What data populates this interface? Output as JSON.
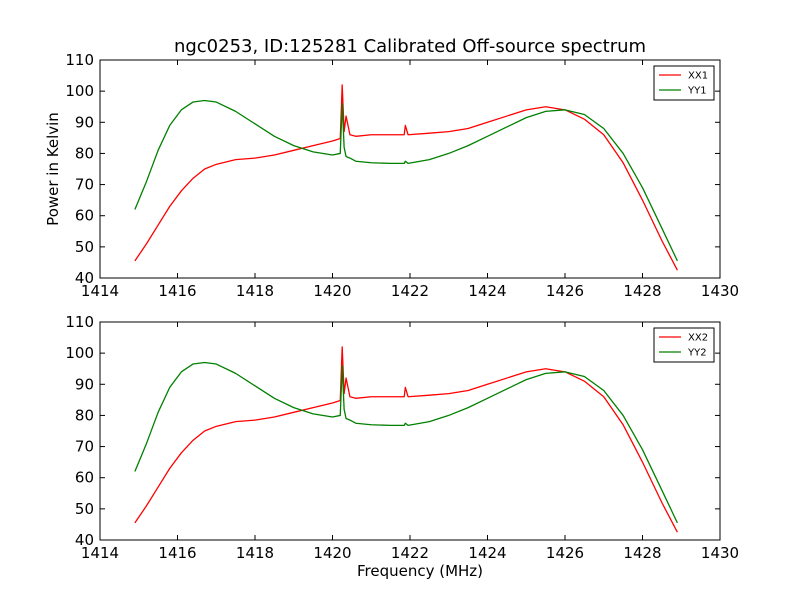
{
  "chart_title": "ngc0253, ID:125281 Calibrated Off-source spectrum",
  "colors": {
    "xx": "#ff0000",
    "yy": "#008000"
  },
  "chart_data": [
    {
      "type": "line",
      "ylabel": "Power in Kelvin",
      "xlabel": "",
      "xlim": [
        1414,
        1430
      ],
      "ylim": [
        40,
        110
      ],
      "xticks": [
        "1414",
        "1416",
        "1418",
        "1420",
        "1422",
        "1424",
        "1426",
        "1428",
        "1430"
      ],
      "yticks": [
        "40",
        "50",
        "60",
        "70",
        "80",
        "90",
        "100",
        "110"
      ],
      "legend_position": "top-right",
      "series": [
        {
          "name": "XX1",
          "color": "#ff0000",
          "x": [
            1414.9,
            1415.2,
            1415.5,
            1415.8,
            1416.1,
            1416.4,
            1416.7,
            1417.0,
            1417.5,
            1418.0,
            1418.5,
            1419.0,
            1419.5,
            1420.0,
            1420.2,
            1420.25,
            1420.3,
            1420.35,
            1420.45,
            1420.6,
            1421.0,
            1421.5,
            1421.85,
            1421.88,
            1421.95,
            1422.5,
            1423.0,
            1423.5,
            1424.0,
            1424.5,
            1425.0,
            1425.5,
            1426.0,
            1426.5,
            1427.0,
            1427.5,
            1428.0,
            1428.5,
            1428.9
          ],
          "y": [
            45.5,
            51,
            57,
            63,
            68,
            72,
            75,
            76.5,
            78,
            78.5,
            79.5,
            81,
            82.5,
            84,
            84.8,
            102,
            87,
            92,
            86,
            85.5,
            86,
            86,
            86,
            89,
            86,
            86.5,
            87,
            88,
            90,
            92,
            94,
            95,
            94,
            91,
            86,
            77,
            65,
            52,
            42.5
          ]
        },
        {
          "name": "YY1",
          "color": "#008000",
          "x": [
            1414.9,
            1415.2,
            1415.5,
            1415.8,
            1416.1,
            1416.4,
            1416.7,
            1417.0,
            1417.5,
            1418.0,
            1418.5,
            1419.0,
            1419.5,
            1420.0,
            1420.2,
            1420.25,
            1420.3,
            1420.35,
            1420.45,
            1420.6,
            1421.0,
            1421.5,
            1421.85,
            1421.88,
            1421.95,
            1422.5,
            1423.0,
            1423.5,
            1424.0,
            1424.5,
            1425.0,
            1425.5,
            1426.0,
            1426.5,
            1427.0,
            1427.5,
            1428.0,
            1428.5,
            1428.9
          ],
          "y": [
            62,
            71,
            81,
            89,
            94,
            96.5,
            97,
            96.5,
            93.5,
            89.5,
            85.5,
            82.5,
            80.5,
            79.5,
            80,
            96,
            82,
            79,
            78.5,
            77.5,
            77,
            76.8,
            76.8,
            77.5,
            76.8,
            78,
            80,
            82.5,
            85.5,
            88.5,
            91.5,
            93.5,
            94,
            92.5,
            88,
            80,
            69,
            56,
            45.5
          ]
        }
      ]
    },
    {
      "type": "line",
      "ylabel": "",
      "xlabel": "Frequency (MHz)",
      "xlim": [
        1414,
        1430
      ],
      "ylim": [
        40,
        110
      ],
      "xticks": [
        "1414",
        "1416",
        "1418",
        "1420",
        "1422",
        "1424",
        "1426",
        "1428",
        "1430"
      ],
      "yticks": [
        "40",
        "50",
        "60",
        "70",
        "80",
        "90",
        "100",
        "110"
      ],
      "legend_position": "top-right",
      "series": [
        {
          "name": "XX2",
          "color": "#ff0000",
          "x": [
            1414.9,
            1415.2,
            1415.5,
            1415.8,
            1416.1,
            1416.4,
            1416.7,
            1417.0,
            1417.5,
            1418.0,
            1418.5,
            1419.0,
            1419.5,
            1420.0,
            1420.2,
            1420.25,
            1420.3,
            1420.35,
            1420.45,
            1420.6,
            1421.0,
            1421.5,
            1421.85,
            1421.88,
            1421.95,
            1422.5,
            1423.0,
            1423.5,
            1424.0,
            1424.5,
            1425.0,
            1425.5,
            1426.0,
            1426.5,
            1427.0,
            1427.5,
            1428.0,
            1428.5,
            1428.9
          ],
          "y": [
            45.5,
            51,
            57,
            63,
            68,
            72,
            75,
            76.5,
            78,
            78.5,
            79.5,
            81,
            82.5,
            84,
            84.8,
            102,
            87,
            92,
            86,
            85.5,
            86,
            86,
            86,
            89,
            86,
            86.5,
            87,
            88,
            90,
            92,
            94,
            95,
            94,
            91,
            86,
            77,
            65,
            52,
            42.5
          ]
        },
        {
          "name": "YY2",
          "color": "#008000",
          "x": [
            1414.9,
            1415.2,
            1415.5,
            1415.8,
            1416.1,
            1416.4,
            1416.7,
            1417.0,
            1417.5,
            1418.0,
            1418.5,
            1419.0,
            1419.5,
            1420.0,
            1420.2,
            1420.25,
            1420.3,
            1420.35,
            1420.45,
            1420.6,
            1421.0,
            1421.5,
            1421.85,
            1421.88,
            1421.95,
            1422.5,
            1423.0,
            1423.5,
            1424.0,
            1424.5,
            1425.0,
            1425.5,
            1426.0,
            1426.5,
            1427.0,
            1427.5,
            1428.0,
            1428.5,
            1428.9
          ],
          "y": [
            62,
            71,
            81,
            89,
            94,
            96.5,
            97,
            96.5,
            93.5,
            89.5,
            85.5,
            82.5,
            80.5,
            79.5,
            80,
            96,
            82,
            79,
            78.5,
            77.5,
            77,
            76.8,
            76.8,
            77.5,
            76.8,
            78,
            80,
            82.5,
            85.5,
            88.5,
            91.5,
            93.5,
            94,
            92.5,
            88,
            80,
            69,
            56,
            45.5
          ]
        }
      ]
    }
  ]
}
